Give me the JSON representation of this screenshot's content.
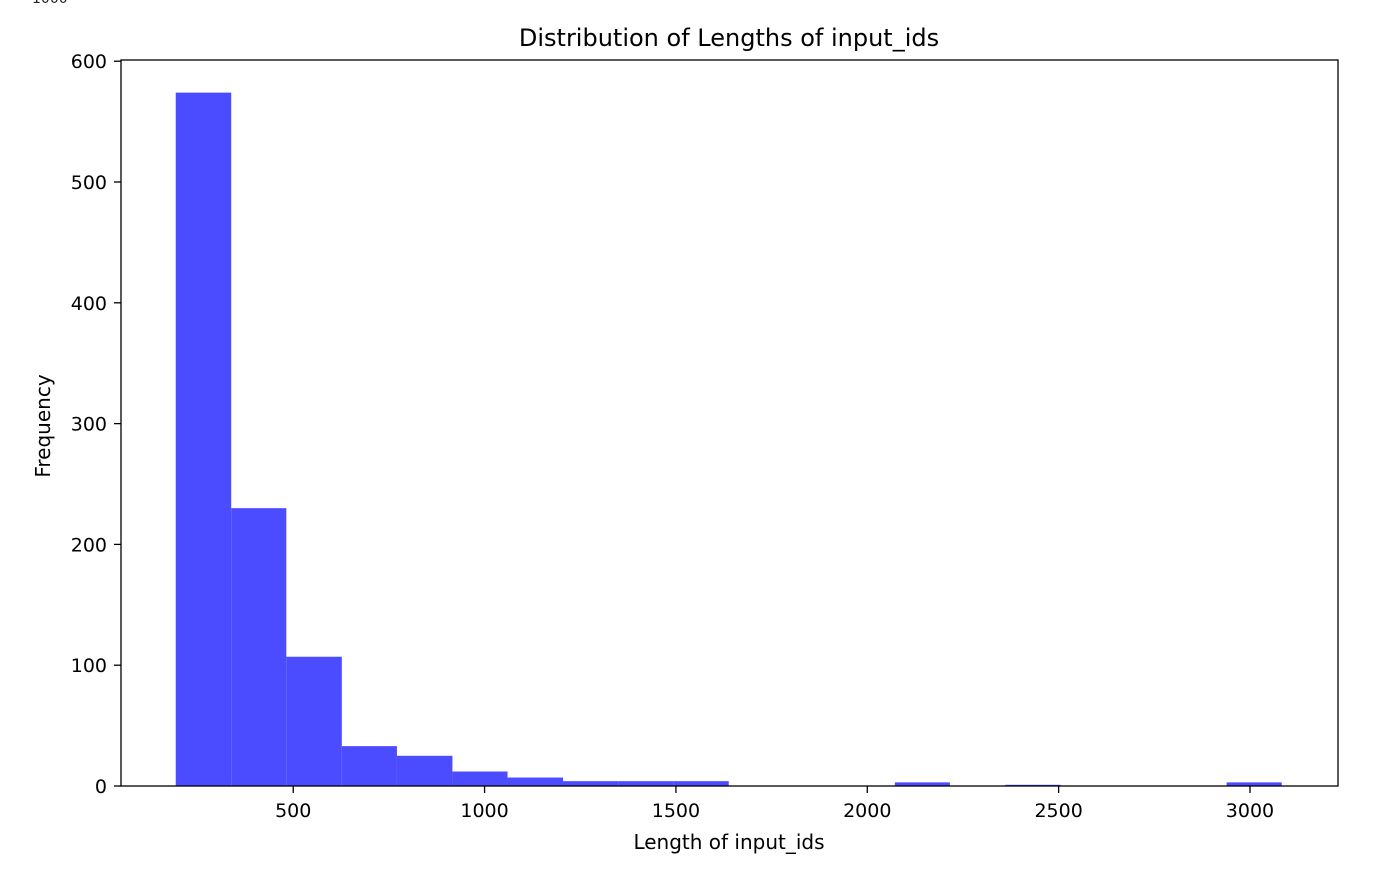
{
  "stray_label": "1000",
  "chart_data": {
    "type": "bar",
    "title": "Distribution of Lengths of input_ids",
    "xlabel": "Length of input_ids",
    "ylabel": "Frequency",
    "xlim": [
      50,
      3230
    ],
    "ylim": [
      0,
      601
    ],
    "xticks": [
      500,
      1000,
      1500,
      2000,
      2500,
      3000
    ],
    "yticks": [
      0,
      100,
      200,
      300,
      400,
      500,
      600
    ],
    "bar_color": "#4b4bff",
    "bins": [
      {
        "x0": 193,
        "x1": 338,
        "count": 574
      },
      {
        "x0": 338,
        "x1": 482,
        "count": 230
      },
      {
        "x0": 482,
        "x1": 627,
        "count": 107
      },
      {
        "x0": 627,
        "x1": 771,
        "count": 33
      },
      {
        "x0": 771,
        "x1": 916,
        "count": 25
      },
      {
        "x0": 916,
        "x1": 1060,
        "count": 12
      },
      {
        "x0": 1060,
        "x1": 1205,
        "count": 7
      },
      {
        "x0": 1205,
        "x1": 1349,
        "count": 4
      },
      {
        "x0": 1349,
        "x1": 1494,
        "count": 4
      },
      {
        "x0": 1494,
        "x1": 1638,
        "count": 4
      },
      {
        "x0": 1638,
        "x1": 1783,
        "count": 0
      },
      {
        "x0": 1783,
        "x1": 1927,
        "count": 0
      },
      {
        "x0": 1927,
        "x1": 2072,
        "count": 0
      },
      {
        "x0": 2072,
        "x1": 2216,
        "count": 3
      },
      {
        "x0": 2216,
        "x1": 2361,
        "count": 0
      },
      {
        "x0": 2361,
        "x1": 2505,
        "count": 1
      },
      {
        "x0": 2505,
        "x1": 2650,
        "count": 0
      },
      {
        "x0": 2650,
        "x1": 2794,
        "count": 0
      },
      {
        "x0": 2794,
        "x1": 2939,
        "count": 0
      },
      {
        "x0": 2939,
        "x1": 3083,
        "count": 3
      }
    ],
    "grid": false,
    "legend": "none"
  }
}
